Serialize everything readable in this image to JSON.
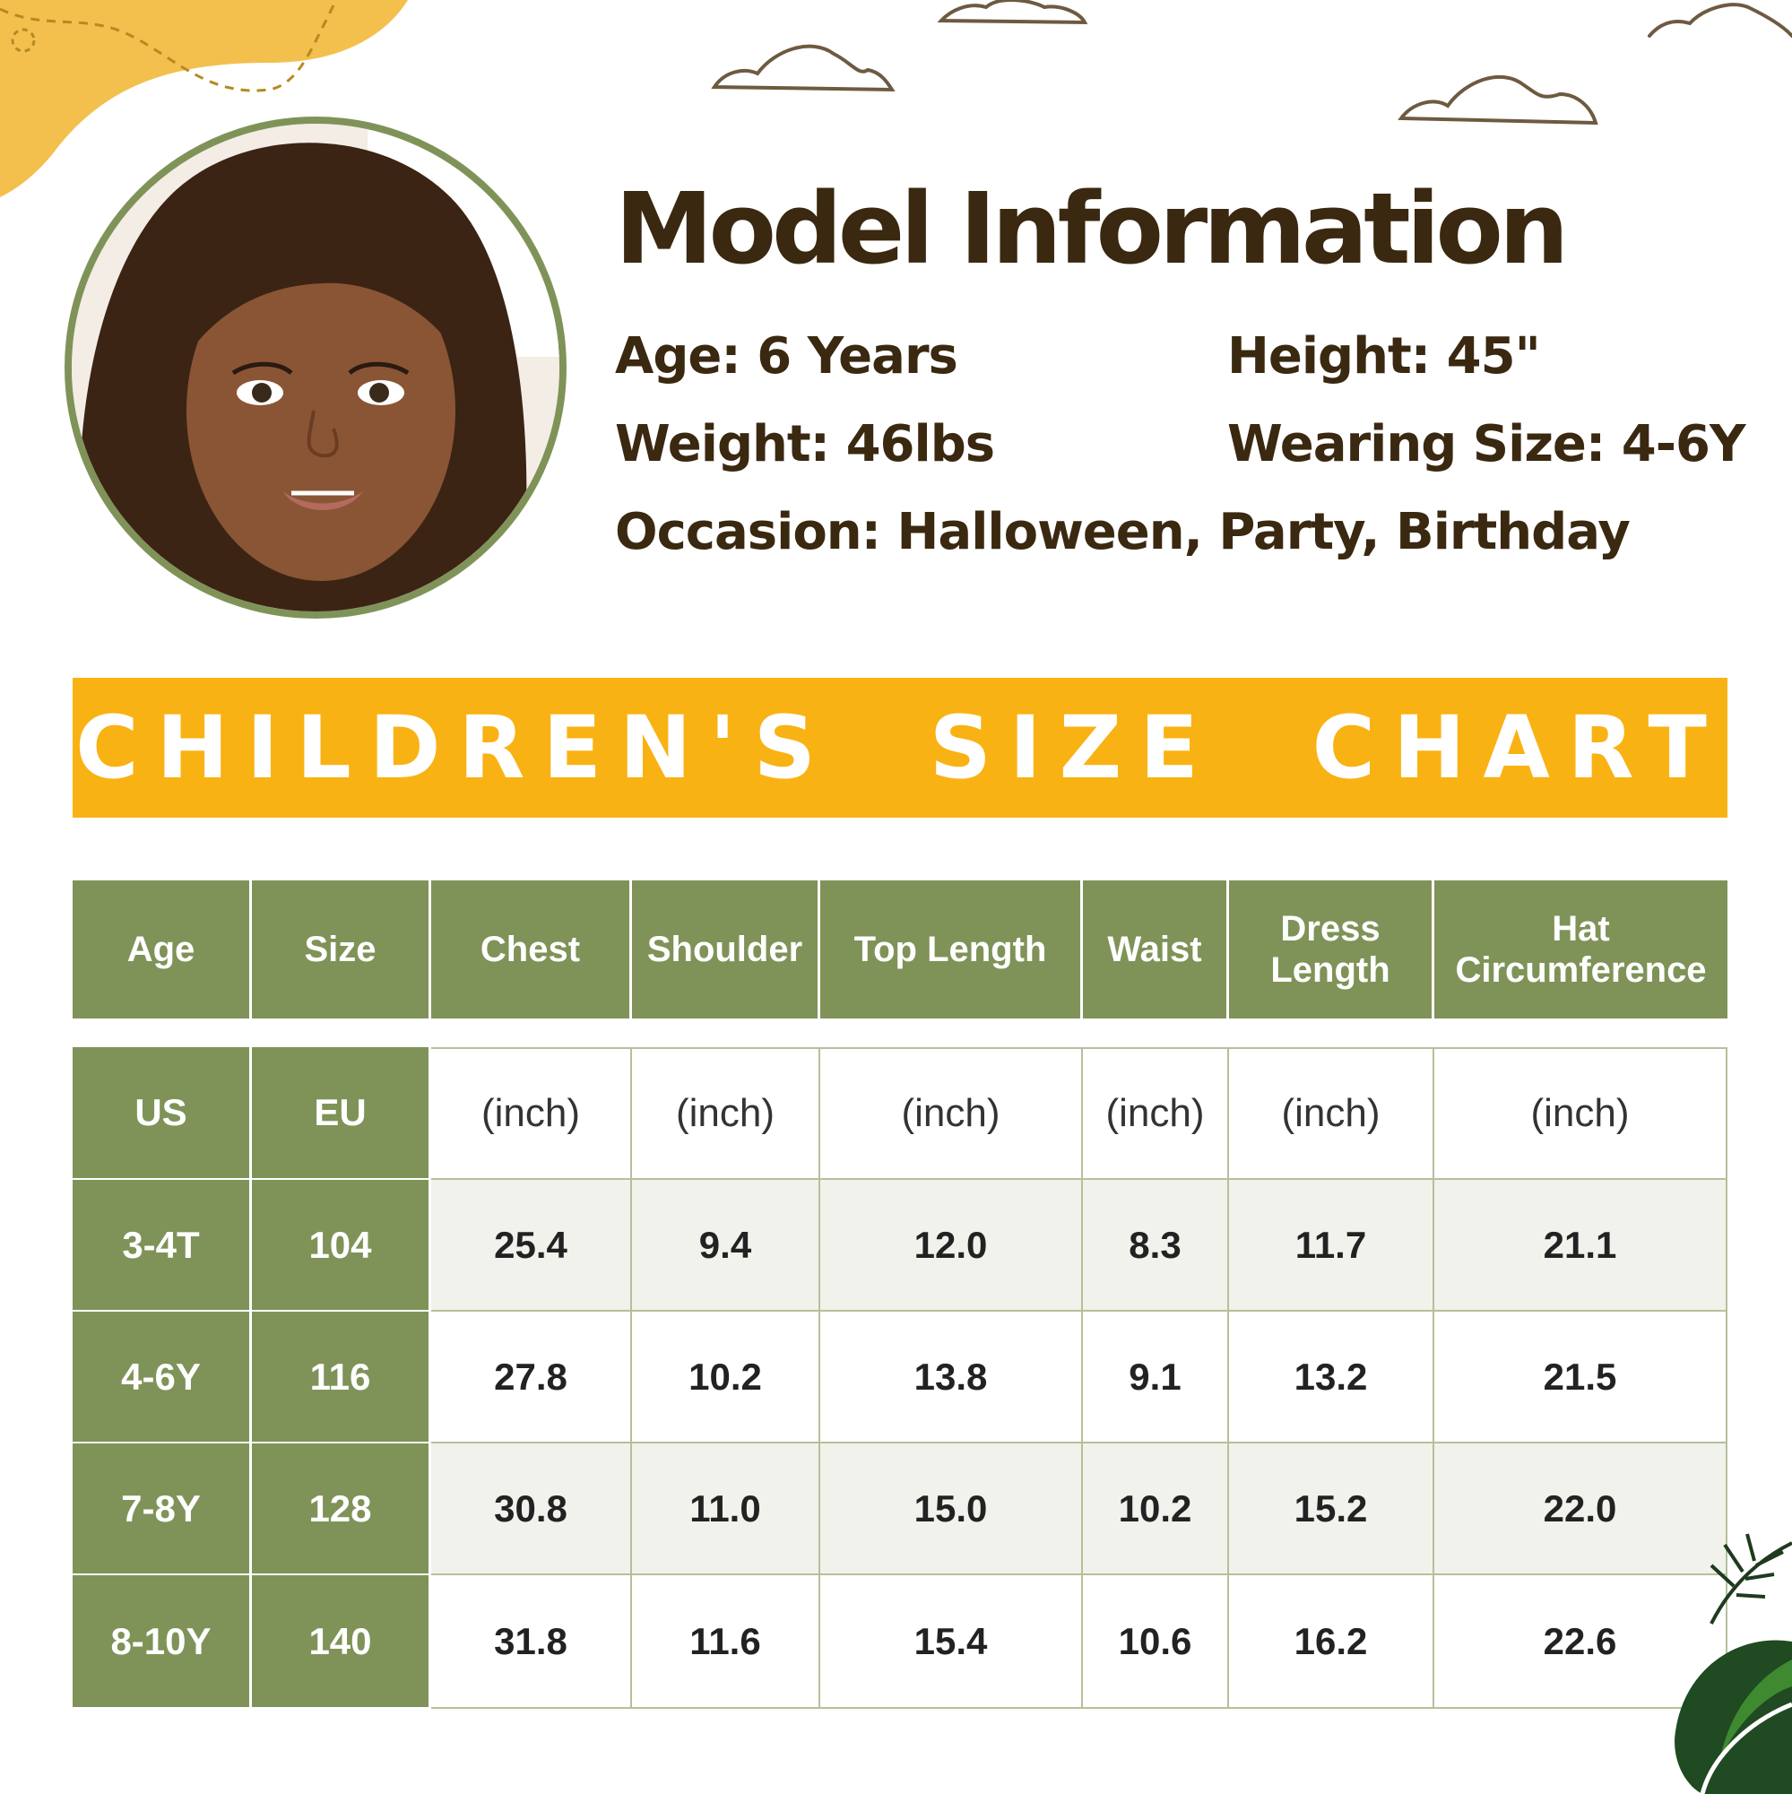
{
  "colors": {
    "olive_green": "#7f9358",
    "banner_yellow": "#f9b214",
    "blob_yellow": "#f3c04d",
    "dark_brown": "#3a2810",
    "row_shade": "#f1f2ec"
  },
  "model_info": {
    "title": "Model Information",
    "age": "Age: 6 Years",
    "height": "Height: 45\"",
    "weight": "Weight: 46lbs",
    "wearing_size": "Wearing Size: 4-6Y",
    "occasion": "Occasion: Halloween, Party, Birthday"
  },
  "banner": {
    "title": "CHILDREN'S  SIZE  CHART"
  },
  "size_chart": {
    "headers": [
      "Age",
      "Size",
      "Chest",
      "Shoulder",
      "Top Length",
      "Waist",
      "Dress Length",
      "Hat Circumference"
    ],
    "units": [
      "US",
      "EU",
      "(inch)",
      "(inch)",
      "(inch)",
      "(inch)",
      "(inch)",
      "(inch)"
    ],
    "rows": [
      [
        "3-4T",
        "104",
        "25.4",
        "9.4",
        "12.0",
        "8.3",
        "11.7",
        "21.1"
      ],
      [
        "4-6Y",
        "116",
        "27.8",
        "10.2",
        "13.8",
        "9.1",
        "13.2",
        "21.5"
      ],
      [
        "7-8Y",
        "128",
        "30.8",
        "11.0",
        "15.0",
        "10.2",
        "15.2",
        "22.0"
      ],
      [
        "8-10Y",
        "140",
        "31.8",
        "11.6",
        "15.4",
        "10.6",
        "16.2",
        "22.6"
      ]
    ]
  },
  "icons": {
    "photo": "child-portrait",
    "clouds": "cloud-outline-icon",
    "leaves": "leaf-icon"
  }
}
